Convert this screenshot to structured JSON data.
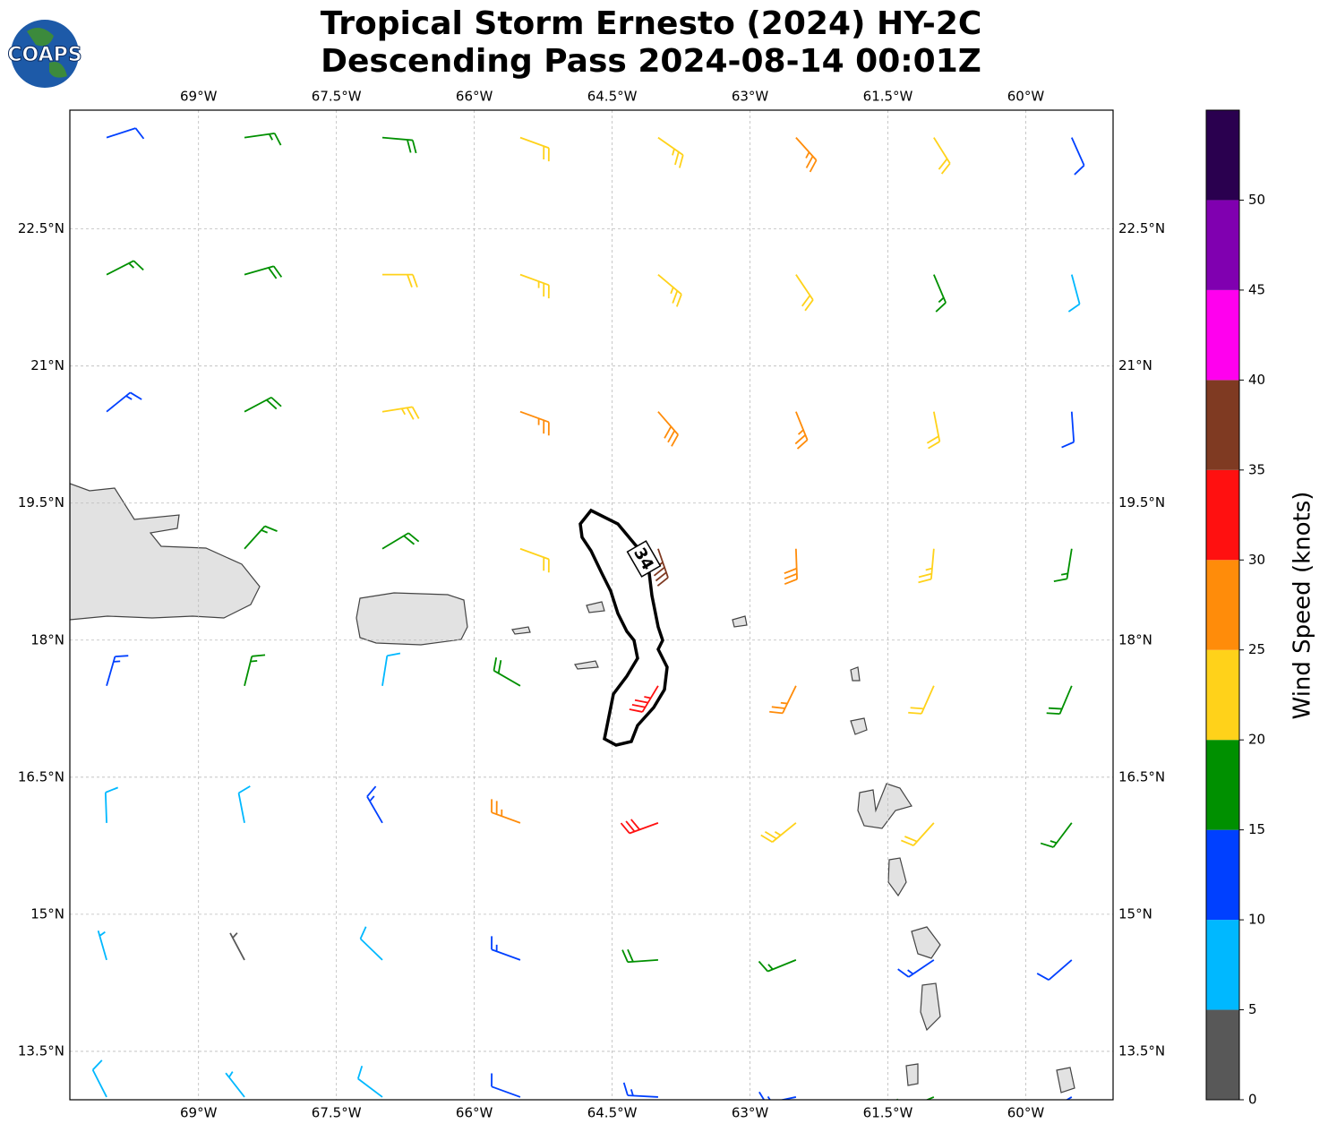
{
  "logo": "COAPS",
  "chart_data": {
    "type": "barbs",
    "title_lines": [
      "Tropical Storm Ernesto (2024) HY-2C",
      "Descending Pass 2024-08-14 00:01Z"
    ],
    "xlim": [
      -70.4,
      -59.05
    ],
    "ylim": [
      12.97,
      23.8
    ],
    "xticks": [
      {
        "value": -69,
        "label": "69°W"
      },
      {
        "value": -67.5,
        "label": "67.5°W"
      },
      {
        "value": -66,
        "label": "66°W"
      },
      {
        "value": -64.5,
        "label": "64.5°W"
      },
      {
        "value": -63,
        "label": "63°W"
      },
      {
        "value": -61.5,
        "label": "61.5°W"
      },
      {
        "value": -60,
        "label": "60°W"
      }
    ],
    "yticks": [
      {
        "value": 13.5,
        "label": "13.5°N"
      },
      {
        "value": 15,
        "label": "15°N"
      },
      {
        "value": 16.5,
        "label": "16.5°N"
      },
      {
        "value": 18,
        "label": "18°N"
      },
      {
        "value": 19.5,
        "label": "19.5°N"
      },
      {
        "value": 21,
        "label": "21°N"
      },
      {
        "value": 22.5,
        "label": "22.5°N"
      }
    ],
    "grid": true,
    "contour_level": 34,
    "colorbar": {
      "label": "Wind Speed (knots)",
      "lim": [
        0,
        55
      ],
      "ticks": [
        0,
        5,
        10,
        15,
        20,
        25,
        30,
        35,
        40,
        45,
        50
      ],
      "colors": [
        "#585858",
        "#00b8ff",
        "#0040ff",
        "#009000",
        "#ffd21a",
        "#ff8c0a",
        "#ff1010",
        "#7f3a22",
        "#ff00ee",
        "#8000b0",
        "#2a004f"
      ]
    },
    "points": [
      [
        -70,
        23.5,
        12,
        72
      ],
      [
        -68.5,
        23.5,
        17,
        82
      ],
      [
        -67,
        23.5,
        18,
        95
      ],
      [
        -65.5,
        23.5,
        22,
        110
      ],
      [
        -64,
        23.5,
        23,
        125
      ],
      [
        -62.5,
        23.5,
        27,
        138
      ],
      [
        -61,
        23.5,
        22,
        148
      ],
      [
        -59.5,
        23.5,
        12,
        156
      ],
      [
        -70,
        22,
        17,
        63
      ],
      [
        -68.5,
        22,
        18,
        74
      ],
      [
        -67,
        22,
        22,
        90
      ],
      [
        -65.5,
        22,
        23,
        110
      ],
      [
        -64,
        22,
        24,
        130
      ],
      [
        -62.5,
        22,
        22,
        146
      ],
      [
        -61,
        22,
        17,
        157
      ],
      [
        -59.5,
        22,
        8,
        165
      ],
      [
        -70,
        20.5,
        13,
        51
      ],
      [
        -68.5,
        20.5,
        18,
        62
      ],
      [
        -67,
        20.5,
        23,
        81
      ],
      [
        -65.5,
        20.5,
        26,
        110
      ],
      [
        -64,
        20.5,
        28,
        139
      ],
      [
        -62.5,
        20.5,
        27,
        158
      ],
      [
        -61,
        20.5,
        21,
        169
      ],
      [
        -59.5,
        20.5,
        12,
        176
      ],
      [
        -68.5,
        19,
        17,
        42
      ],
      [
        -67,
        19,
        19,
        59
      ],
      [
        -65.5,
        19,
        22,
        110
      ],
      [
        -64,
        19,
        36,
        161
      ],
      [
        -62.5,
        19,
        28,
        178
      ],
      [
        -61,
        19,
        23,
        185
      ],
      [
        -59.5,
        19,
        17,
        189
      ],
      [
        -70,
        17.5,
        13,
        16
      ],
      [
        -68.5,
        17.5,
        17,
        14
      ],
      [
        -67,
        17.5,
        8,
        9
      ],
      [
        -65.5,
        17.5,
        19,
        300
      ],
      [
        -64,
        17.5,
        33,
        211
      ],
      [
        -62.5,
        17.5,
        27,
        206
      ],
      [
        -61,
        17.5,
        22,
        204
      ],
      [
        -59.5,
        17.5,
        18,
        203
      ],
      [
        -70,
        16,
        8,
        358
      ],
      [
        -68.5,
        16,
        9,
        349
      ],
      [
        -67,
        16,
        13,
        330
      ],
      [
        -65.5,
        16,
        27,
        290
      ],
      [
        -64,
        16,
        32,
        250
      ],
      [
        -62.5,
        16,
        23,
        231
      ],
      [
        -61,
        16,
        21,
        222
      ],
      [
        -59.5,
        16,
        17,
        217
      ],
      [
        -70,
        14.5,
        7,
        344
      ],
      [
        -68.5,
        14.5,
        3,
        332
      ],
      [
        -67,
        14.5,
        8,
        314
      ],
      [
        -65.5,
        14.5,
        13,
        290
      ],
      [
        -64,
        14.5,
        18,
        266
      ],
      [
        -62.5,
        14.5,
        17,
        248
      ],
      [
        -61,
        14.5,
        14,
        236
      ],
      [
        -59.5,
        14.5,
        12,
        229
      ],
      [
        -70,
        13,
        8,
        333
      ],
      [
        -68.5,
        13,
        7,
        322
      ],
      [
        -67,
        13,
        9,
        307
      ],
      [
        -65.5,
        13,
        12,
        290
      ],
      [
        -64,
        13,
        14,
        273
      ],
      [
        -62.5,
        13,
        13,
        258
      ],
      [
        -61,
        13,
        16,
        247
      ],
      [
        -59.5,
        13,
        13,
        239
      ]
    ]
  }
}
